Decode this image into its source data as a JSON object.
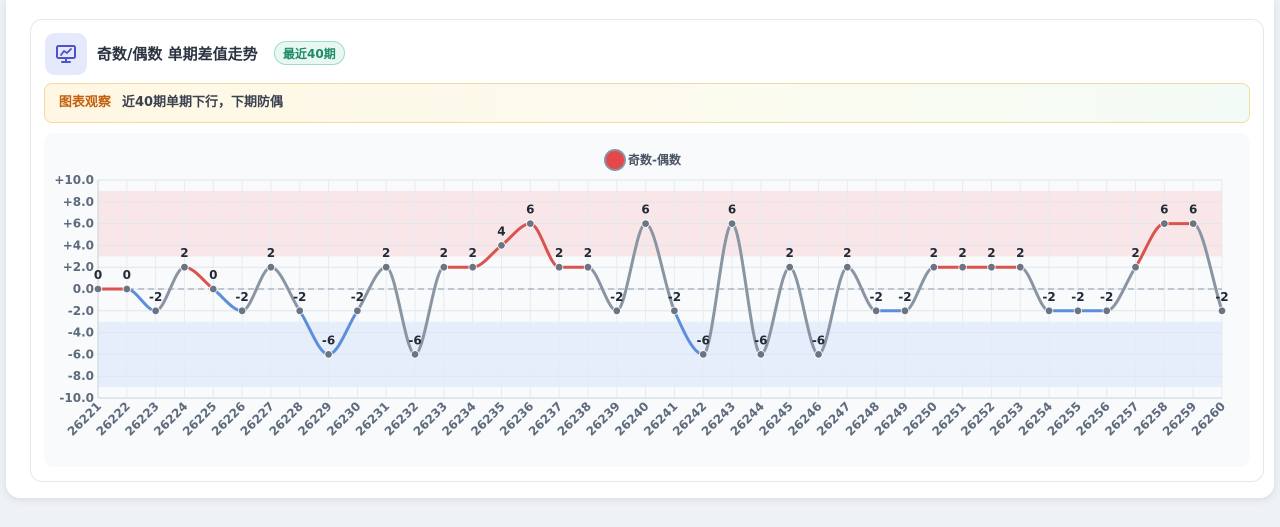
{
  "header": {
    "title": "奇数/偶数 单期差值走势",
    "badge": "最近40期",
    "icon": "presentation-chart-icon"
  },
  "observation": {
    "label": "图表观察",
    "text": "近40期单期下行，下期防偶"
  },
  "colors": {
    "up": "#d9534f",
    "down": "#5b8fd9",
    "flat": "#8a95a3",
    "point": "#6b7482",
    "legend_dot": "#e54848"
  },
  "chart_data": {
    "type": "line",
    "legend": [
      {
        "name": "奇数-偶数",
        "placement": "top-center"
      }
    ],
    "x": [
      "26221",
      "26222",
      "26223",
      "26224",
      "26225",
      "26226",
      "26227",
      "26228",
      "26229",
      "26230",
      "26231",
      "26232",
      "26233",
      "26234",
      "26235",
      "26236",
      "26237",
      "26238",
      "26239",
      "26240",
      "26241",
      "26242",
      "26243",
      "26244",
      "26245",
      "26246",
      "26247",
      "26248",
      "26249",
      "26250",
      "26251",
      "26252",
      "26253",
      "26254",
      "26255",
      "26256",
      "26257",
      "26258",
      "26259",
      "26260"
    ],
    "series": [
      {
        "name": "奇数-偶数",
        "values": [
          0,
          0,
          -2,
          2,
          0,
          -2,
          2,
          -2,
          -6,
          -2,
          2,
          -6,
          2,
          2,
          4,
          6,
          2,
          2,
          -2,
          6,
          -2,
          -6,
          6,
          -6,
          2,
          -6,
          2,
          -2,
          -2,
          2,
          2,
          2,
          2,
          -2,
          -2,
          -2,
          2,
          6,
          6,
          -2
        ]
      }
    ],
    "ylim": [
      -10,
      10
    ],
    "yticks": [
      "+10.0",
      "+8.0",
      "+6.0",
      "+4.0",
      "+2.0",
      "0.0",
      "-2.0",
      "-4.0",
      "-6.0",
      "-8.0",
      "-10.0"
    ],
    "bands": [
      {
        "from": 3,
        "to": 9,
        "color": "#f9dfe2"
      },
      {
        "from": -9,
        "to": -3,
        "color": "#e2eafb"
      }
    ],
    "zero_line": true,
    "grid": true
  }
}
